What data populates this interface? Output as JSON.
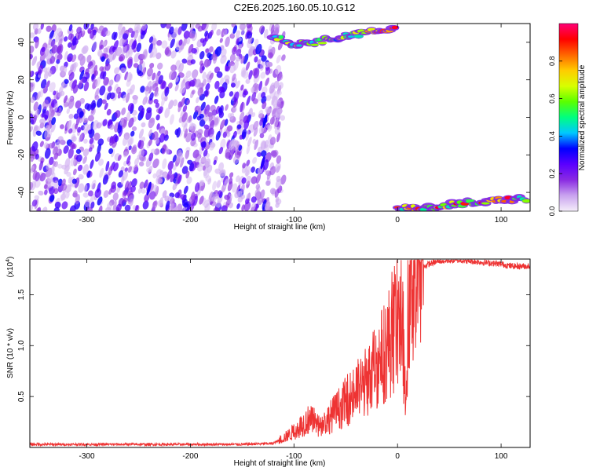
{
  "figure_title": "C2E6.2025.160.05.10.G12",
  "chart_data": [
    {
      "type": "heatmap",
      "xlabel": "Height of straight line (km)",
      "ylabel": "Frequency (Hz)",
      "xlim": [
        -355,
        128
      ],
      "ylim": [
        -50,
        50
      ],
      "xticks": [
        -300,
        -200,
        -100,
        0,
        100
      ],
      "yticks": [
        -40,
        -20,
        0,
        20,
        40
      ],
      "noise_region_x": [
        -355,
        -120
      ],
      "signal_tracks": [
        {
          "description_free": true,
          "x": [
            -120,
            -100,
            -80,
            -60,
            -40,
            -20,
            0
          ],
          "y": [
            43,
            39,
            40,
            42,
            44,
            46,
            48
          ]
        },
        {
          "description_free": true,
          "x": [
            0,
            20,
            40,
            60,
            80,
            100,
            128
          ],
          "y": [
            -49,
            -48,
            -47,
            -46,
            -45,
            -44,
            -43
          ]
        }
      ],
      "colorbar": {
        "label": "Normalized spectral amplitude",
        "ticks": [
          0.0,
          0.2,
          0.4,
          0.6,
          0.8
        ],
        "range": [
          0,
          1
        ],
        "colormap": [
          "#f5eefa",
          "#c9a3ef",
          "#8a2be2",
          "#5a00ff",
          "#0000ff",
          "#00c8ff",
          "#00ff80",
          "#5aff00",
          "#d8ff00",
          "#ffcc00",
          "#ff6600",
          "#ff0000",
          "#ff0077"
        ]
      }
    },
    {
      "type": "line",
      "xlabel": "Height of straight line (km)",
      "ylabel": "SNR (10 * v/v)",
      "yscale_note": "(x10",
      "yscale_exp": "4",
      "xlim": [
        -355,
        128
      ],
      "ylim": [
        0,
        1.85
      ],
      "xticks": [
        -300,
        -200,
        -100,
        0,
        100
      ],
      "yticks": [
        0.5,
        1.0,
        1.5
      ],
      "line_color": "#ee3333",
      "series": [
        {
          "x": [
            -355,
            -300,
            -250,
            -200,
            -150,
            -120,
            -105,
            -95,
            -85,
            -75,
            -60,
            -45,
            -35,
            -25,
            -15,
            -5,
            0,
            5,
            8,
            10,
            12,
            15,
            20,
            30,
            40,
            60,
            80,
            100,
            110,
            128
          ],
          "y": [
            0.03,
            0.03,
            0.03,
            0.03,
            0.03,
            0.04,
            0.12,
            0.2,
            0.28,
            0.2,
            0.35,
            0.5,
            0.6,
            0.7,
            0.9,
            1.1,
            1.3,
            1.2,
            0.3,
            1.4,
            1.6,
            1.7,
            1.75,
            1.8,
            1.83,
            1.84,
            1.82,
            1.8,
            1.78,
            1.78
          ]
        }
      ]
    }
  ]
}
